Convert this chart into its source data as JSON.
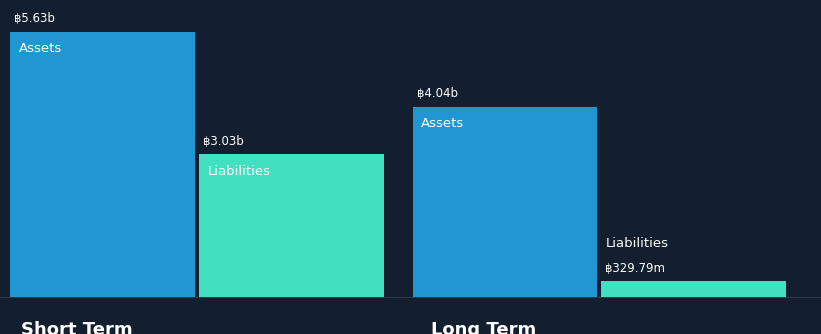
{
  "background_color": "#131e2e",
  "bar_color_assets": "#2196d3",
  "bar_color_liabilities": "#40e0c0",
  "text_color": "#ffffff",
  "baseline_color": "#2a3a4a",
  "groups": [
    {
      "name": "Short Term",
      "assets_value": 5.63,
      "assets_label": "฿5.63b",
      "liabilities_value": 3.03,
      "liabilities_label": "฿3.03b",
      "bar_label_assets": "Assets",
      "bar_label_liabilities": "Liabilities"
    },
    {
      "name": "Long Term",
      "assets_value": 4.04,
      "assets_label": "฿4.04b",
      "liabilities_value": 0.32979,
      "liabilities_label": "฿329.79m",
      "bar_label_assets": "Assets",
      "bar_label_liabilities": "Liabilities"
    }
  ],
  "max_value": 5.63,
  "value_fontsize": 8.5,
  "inner_label_fontsize": 9.5,
  "group_label_fontsize": 13
}
